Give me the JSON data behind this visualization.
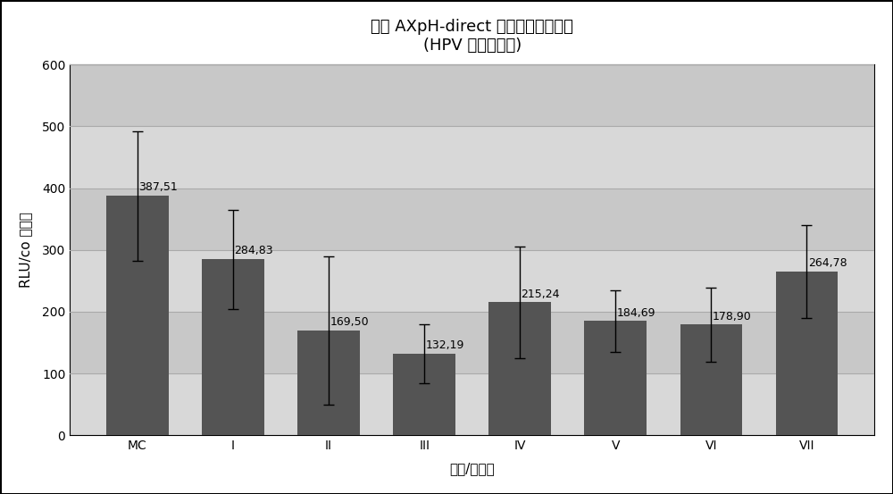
{
  "title_line1": "手动 AXpH-direct 和手动转换的比较",
  "title_line2": "(HPV 阳性临床库)",
  "xlabel": "方法/珠类型",
  "ylabel": "RLU/co 平均值",
  "categories": [
    "MC",
    "I",
    "II",
    "III",
    "IV",
    "V",
    "VI",
    "VII"
  ],
  "values": [
    387.51,
    284.83,
    169.5,
    132.19,
    215.24,
    184.69,
    178.9,
    264.78
  ],
  "errors": [
    105,
    80,
    120,
    48,
    90,
    50,
    60,
    75
  ],
  "bar_color": "#545454",
  "plot_bg_color": "#c8c8c8",
  "band_color_light": "#d8d8d8",
  "outer_bg_color": "#ffffff",
  "grid_color": "#aaaaaa",
  "ylim": [
    0,
    600
  ],
  "yticks": [
    0,
    100,
    200,
    300,
    400,
    500,
    600
  ],
  "label_fontsize": 11,
  "title_fontsize": 13,
  "axis_label_fontsize": 11,
  "tick_label_fontsize": 10,
  "value_label_fontsize": 9
}
